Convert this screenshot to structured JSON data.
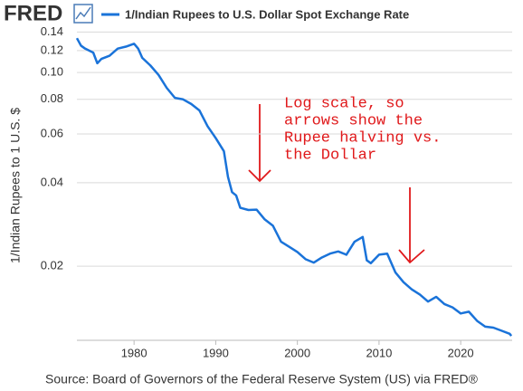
{
  "chart_data": {
    "type": "line",
    "logo": "FRED",
    "ylabel": "1/Indian Rupees to 1 U.S. $",
    "source": "Source: Board of Governors of the Federal Reserve System (US) via FRED®",
    "annotation": [
      "Log scale, so",
      "arrows show the",
      "Rupee halving vs.",
      "the Dollar"
    ],
    "log_y": true,
    "grid": true,
    "xlim": [
      1973,
      2026.3
    ],
    "xticks": [
      1980,
      1990,
      2000,
      2010,
      2020
    ],
    "ylim": [
      0.0108,
      0.148
    ],
    "yticks": [
      0.02,
      0.04,
      0.06,
      0.08,
      {
        "value": 0.1,
        "label": "0.10"
      },
      0.12,
      0.14
    ],
    "x": [
      1973,
      1973.5,
      1974,
      1975,
      1975.5,
      1976,
      1977,
      1978,
      1979,
      1980,
      1980.5,
      1981,
      1982,
      1983,
      1984,
      1985,
      1986,
      1987,
      1988,
      1989,
      1990,
      1991,
      1991.5,
      1992,
      1992.5,
      1993,
      1994,
      1995,
      1996,
      1997,
      1998,
      1999,
      2000,
      2001,
      2002,
      2003,
      2004,
      2005,
      2006,
      2007,
      2008,
      2008.5,
      2009,
      2010,
      2011,
      2012,
      2013,
      2014,
      2015,
      2016,
      2017,
      2018,
      2019,
      2020,
      2021,
      2022,
      2023,
      2024,
      2025,
      2026,
      2026.2
    ],
    "series": [
      {
        "name": "1/Indian Rupees to U.S. Dollar Spot Exchange Rate",
        "color": "#1a73d9",
        "values": [
          0.133,
          0.125,
          0.122,
          0.118,
          0.108,
          0.112,
          0.115,
          0.122,
          0.124,
          0.127,
          0.122,
          0.113,
          0.106,
          0.098,
          0.088,
          0.081,
          0.08,
          0.077,
          0.073,
          0.064,
          0.058,
          0.052,
          0.042,
          0.037,
          0.036,
          0.0325,
          0.0319,
          0.032,
          0.0295,
          0.028,
          0.0245,
          0.0235,
          0.0225,
          0.0212,
          0.0206,
          0.0215,
          0.0222,
          0.0226,
          0.022,
          0.0245,
          0.0255,
          0.021,
          0.0205,
          0.022,
          0.0222,
          0.019,
          0.0175,
          0.0165,
          0.0158,
          0.0149,
          0.0155,
          0.0146,
          0.0142,
          0.0135,
          0.0137,
          0.0127,
          0.0121,
          0.012,
          0.0117,
          0.0114,
          0.0112
        ]
      }
    ]
  }
}
